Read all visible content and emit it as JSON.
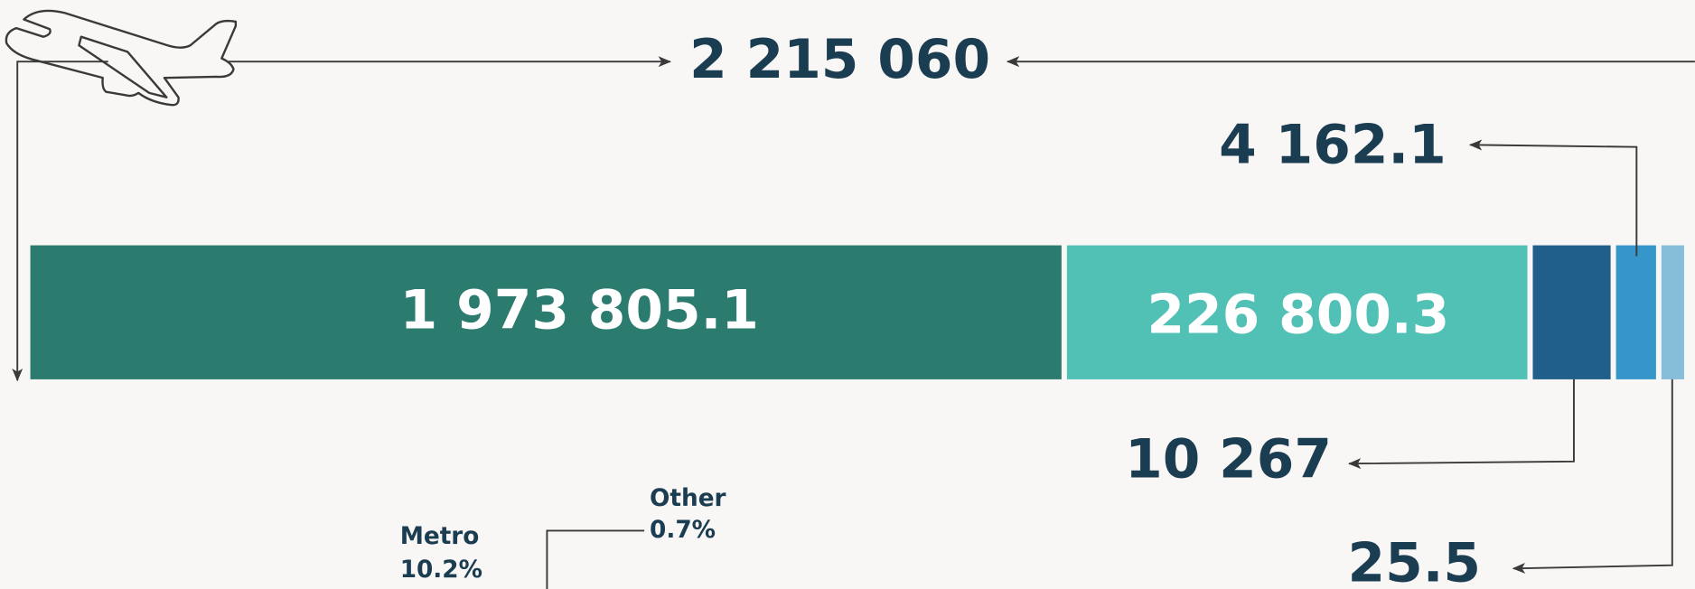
{
  "total": "2 215 060",
  "segments": [
    {
      "value": "1 973 805.1",
      "color": "#2c7b6f"
    },
    {
      "value": "226 800.3",
      "color": "#52c1b5"
    },
    {
      "value": "10 267",
      "color": "#215f8b"
    },
    {
      "value": "4 162.1",
      "color": "#3596ca"
    },
    {
      "value": "25.5",
      "color": "#86bdd8"
    }
  ],
  "shares": [
    {
      "name": "Metro",
      "value": "10.2%"
    },
    {
      "name": "Other",
      "value": "0.7%"
    }
  ]
}
